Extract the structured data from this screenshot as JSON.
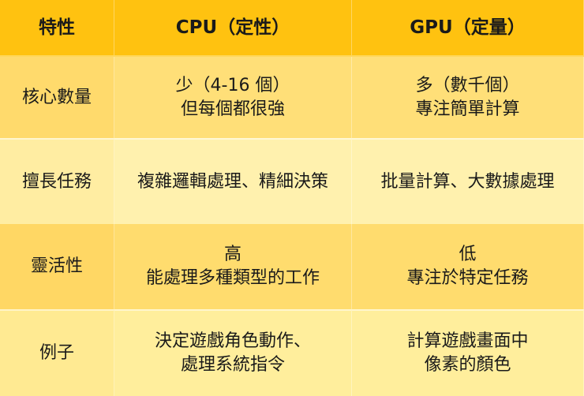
{
  "header": [
    "特性",
    "CPU（定性）",
    "GPU（定量）"
  ],
  "rows": [
    {
      "label": "核心數量",
      "cpu": [
        "少（4-16 個）",
        "但每個都很強"
      ],
      "gpu": [
        "多（數千個）",
        "專注簡單計算"
      ]
    },
    {
      "label": "擅長任務",
      "cpu": [
        "複雜邏輯處理、精細決策"
      ],
      "gpu": [
        "批量計算、大數據處理"
      ]
    },
    {
      "label": "靈活性",
      "cpu": [
        "高",
        "能處理多種類型的工作"
      ],
      "gpu": [
        "低",
        "專注於特定任務"
      ]
    },
    {
      "label": "例子",
      "cpu": [
        "決定遊戲角色動作、",
        "處理系統指令"
      ],
      "gpu": [
        "計算遊戲畫面中",
        "像素的顏色"
      ]
    }
  ],
  "colors": {
    "header": "#FFC210",
    "row_dark": "#FFDF78",
    "row_light": "#FFF1AE"
  }
}
